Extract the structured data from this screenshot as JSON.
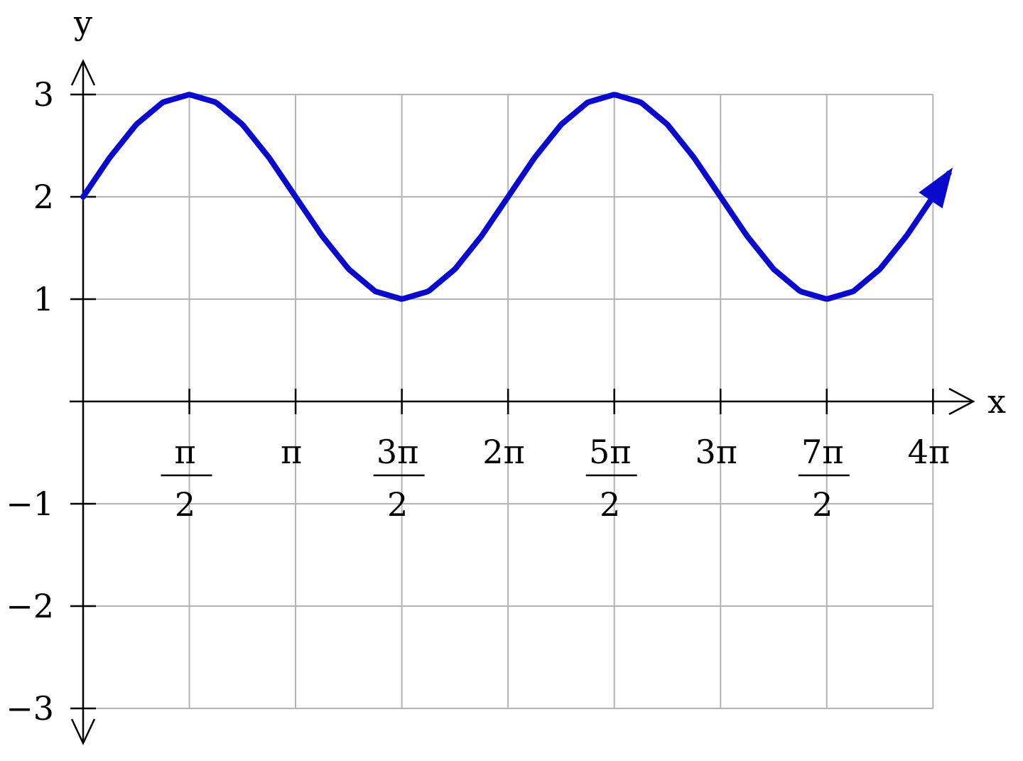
{
  "chart_data": {
    "type": "line",
    "xlabel": "x",
    "ylabel": "y",
    "xlim": [
      0,
      12.566
    ],
    "ylim": [
      -3,
      3
    ],
    "grid": true,
    "line_color": "#0a0acc",
    "grid_color": "#b3b3b3",
    "x_ticks": [
      {
        "value": 1.5708,
        "num": "π",
        "den": "2"
      },
      {
        "value": 3.1416,
        "num": "π",
        "den": ""
      },
      {
        "value": 4.7124,
        "num": "3π",
        "den": "2"
      },
      {
        "value": 6.2832,
        "num": "2π",
        "den": ""
      },
      {
        "value": 7.854,
        "num": "5π",
        "den": "2"
      },
      {
        "value": 9.4248,
        "num": "3π",
        "den": ""
      },
      {
        "value": 10.9956,
        "num": "7π",
        "den": "2"
      },
      {
        "value": 12.5664,
        "num": "4π",
        "den": ""
      }
    ],
    "y_ticks": [
      {
        "value": 3,
        "label": "3"
      },
      {
        "value": 2,
        "label": "2"
      },
      {
        "value": 1,
        "label": "1"
      },
      {
        "value": -1,
        "label": "−1"
      },
      {
        "value": -2,
        "label": "−2"
      },
      {
        "value": -3,
        "label": "−3"
      }
    ],
    "series": [
      {
        "x": [
          0,
          0.3927,
          0.7854,
          1.1781,
          1.5708,
          1.9635,
          2.3562,
          2.7489,
          3.1416,
          3.5343,
          3.927,
          4.3197,
          4.7124,
          5.1051,
          5.4978,
          5.8905,
          6.2832,
          6.6759,
          7.0686,
          7.4613,
          7.854,
          8.2467,
          8.6394,
          9.0321,
          9.4248,
          9.8175,
          10.2102,
          10.6029,
          10.9956,
          11.3883,
          11.781,
          12.1737,
          12.5664,
          12.8
        ],
        "y": [
          2,
          2.383,
          2.707,
          2.924,
          3,
          2.924,
          2.707,
          2.383,
          2,
          1.617,
          1.293,
          1.076,
          1,
          1.076,
          1.293,
          1.617,
          2,
          2.383,
          2.707,
          2.924,
          3,
          2.924,
          2.707,
          2.383,
          2,
          1.617,
          1.293,
          1.076,
          1,
          1.076,
          1.293,
          1.617,
          2,
          2.23
        ]
      }
    ]
  }
}
